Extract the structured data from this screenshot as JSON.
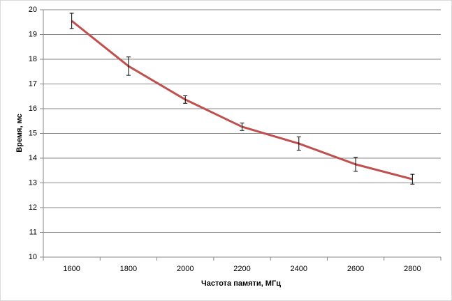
{
  "chart_data": {
    "type": "line",
    "x_label": "Частота памяти, МГц",
    "y_label": "Время, мс",
    "categories": [
      "1600",
      "1800",
      "2000",
      "2200",
      "2400",
      "2600",
      "2800"
    ],
    "series": [
      {
        "color": "#c0504d",
        "values": [
          19.55,
          17.72,
          16.37,
          15.27,
          14.59,
          13.75,
          13.15
        ],
        "errors": [
          0.31,
          0.37,
          0.15,
          0.15,
          0.27,
          0.28,
          0.2
        ]
      }
    ],
    "ylim": [
      10,
      20
    ],
    "yticks": [
      10,
      11,
      12,
      13,
      14,
      15,
      16,
      17,
      18,
      19,
      20
    ],
    "grid": true
  }
}
